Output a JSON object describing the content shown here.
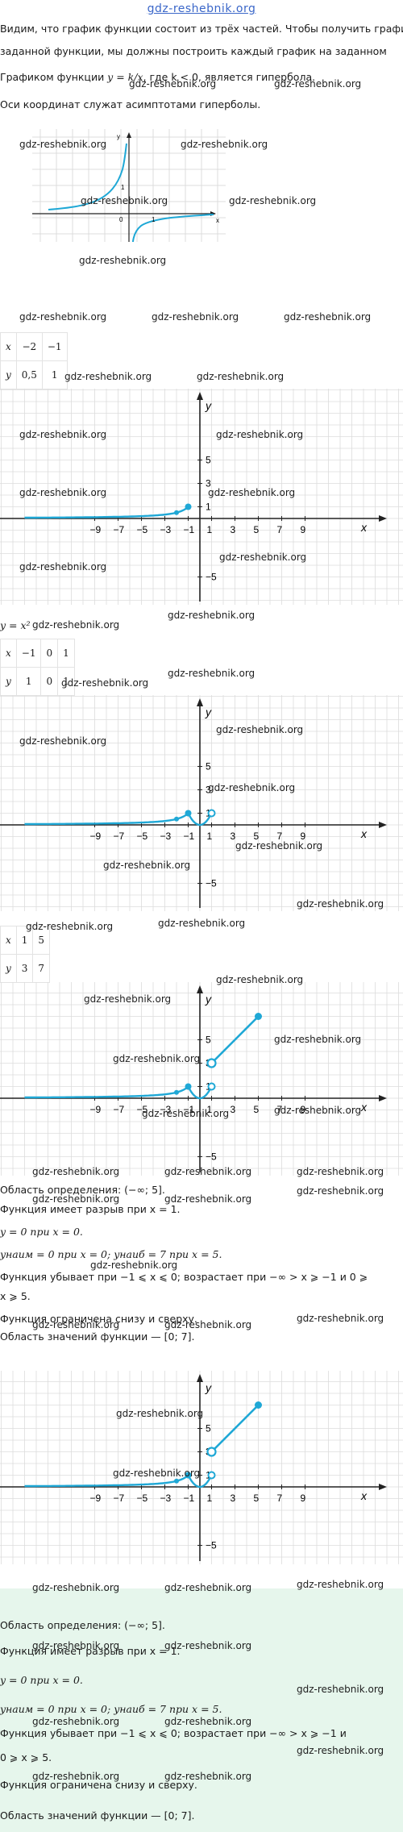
{
  "header": {
    "site": "gdz-reshebnik.org"
  },
  "intro": {
    "line1": "Видим, что график функции состоит из трёх частей. Чтобы получить график",
    "line2": "заданной функции, мы должны построить каждый график на заданном",
    "line3_prefix": "Графиком функции ",
    "line3_formula": "y = k/x",
    "line3_suffix": ", где k < 0, является гипербола.",
    "line4": "Оси координат служат асимптотами гиперболы."
  },
  "small_plot": {
    "y_label": "y",
    "x_label": "x",
    "zero": "0",
    "one_x": "1",
    "one_y": "1"
  },
  "table1": {
    "row_x": [
      "x",
      "−2",
      "−1"
    ],
    "row_y": [
      "y",
      "0,5",
      "1"
    ]
  },
  "table2_label": "y = x²",
  "table2": {
    "row_x": [
      "x",
      "−1",
      "0",
      "1"
    ],
    "row_y": [
      "y",
      "1",
      "0",
      "1"
    ]
  },
  "table3": {
    "row_x": [
      "x",
      "1",
      "5"
    ],
    "row_y": [
      "y",
      "3",
      "7"
    ]
  },
  "grid_plot": {
    "x_axis": "x",
    "y_axis": "y",
    "x_ticks": [
      "−9",
      "−7",
      "−5",
      "−3",
      "−1",
      "1",
      "3",
      "5",
      "7",
      "9"
    ],
    "y_ticks": [
      "5",
      "3",
      "1",
      "−5"
    ]
  },
  "analysis": {
    "domain": "Область определения: (−∞; 5].",
    "break": "Функция имеет разрыв при x = 1.",
    "zero": "y = 0 при x = 0.",
    "extremes": "yнаим = 0 при x = 0; yнаиб = 7 при x = 5.",
    "monotone_1": "Функция убывает при −1 ⩽ x ⩽ 0; возрастает при −∞ > x ⩾ −1 и 0 ⩾",
    "monotone_2": "x ⩾ 5.",
    "bounded": "Функция ограничена снизу и сверху.",
    "range": "Область значений функции — [0; 7]."
  },
  "answer": {
    "domain": "Область определения: (−∞; 5].",
    "break": "Функция имеет разрыв при x = 1.",
    "zero": "y = 0 при x = 0.",
    "extremes": "yнаим = 0 при x = 0; yнаиб = 7 при x = 5.",
    "monotone_1": "Функция убывает при −1 ⩽ x ⩽ 0; возрастает при −∞ > x ⩾ −1 и",
    "monotone_2": "0 ⩾ x ⩾ 5.",
    "bounded": "Функция ограничена снизу и сверху.",
    "range": "Область значений функции — [0; 7]."
  },
  "watermark": "gdz-reshebnik.org",
  "colors": {
    "curve": "#1fa8d6",
    "grid": "#dcdcdc",
    "axis": "#222222",
    "answer_bg": "#e6f6ec",
    "link": "#3b67c9"
  }
}
